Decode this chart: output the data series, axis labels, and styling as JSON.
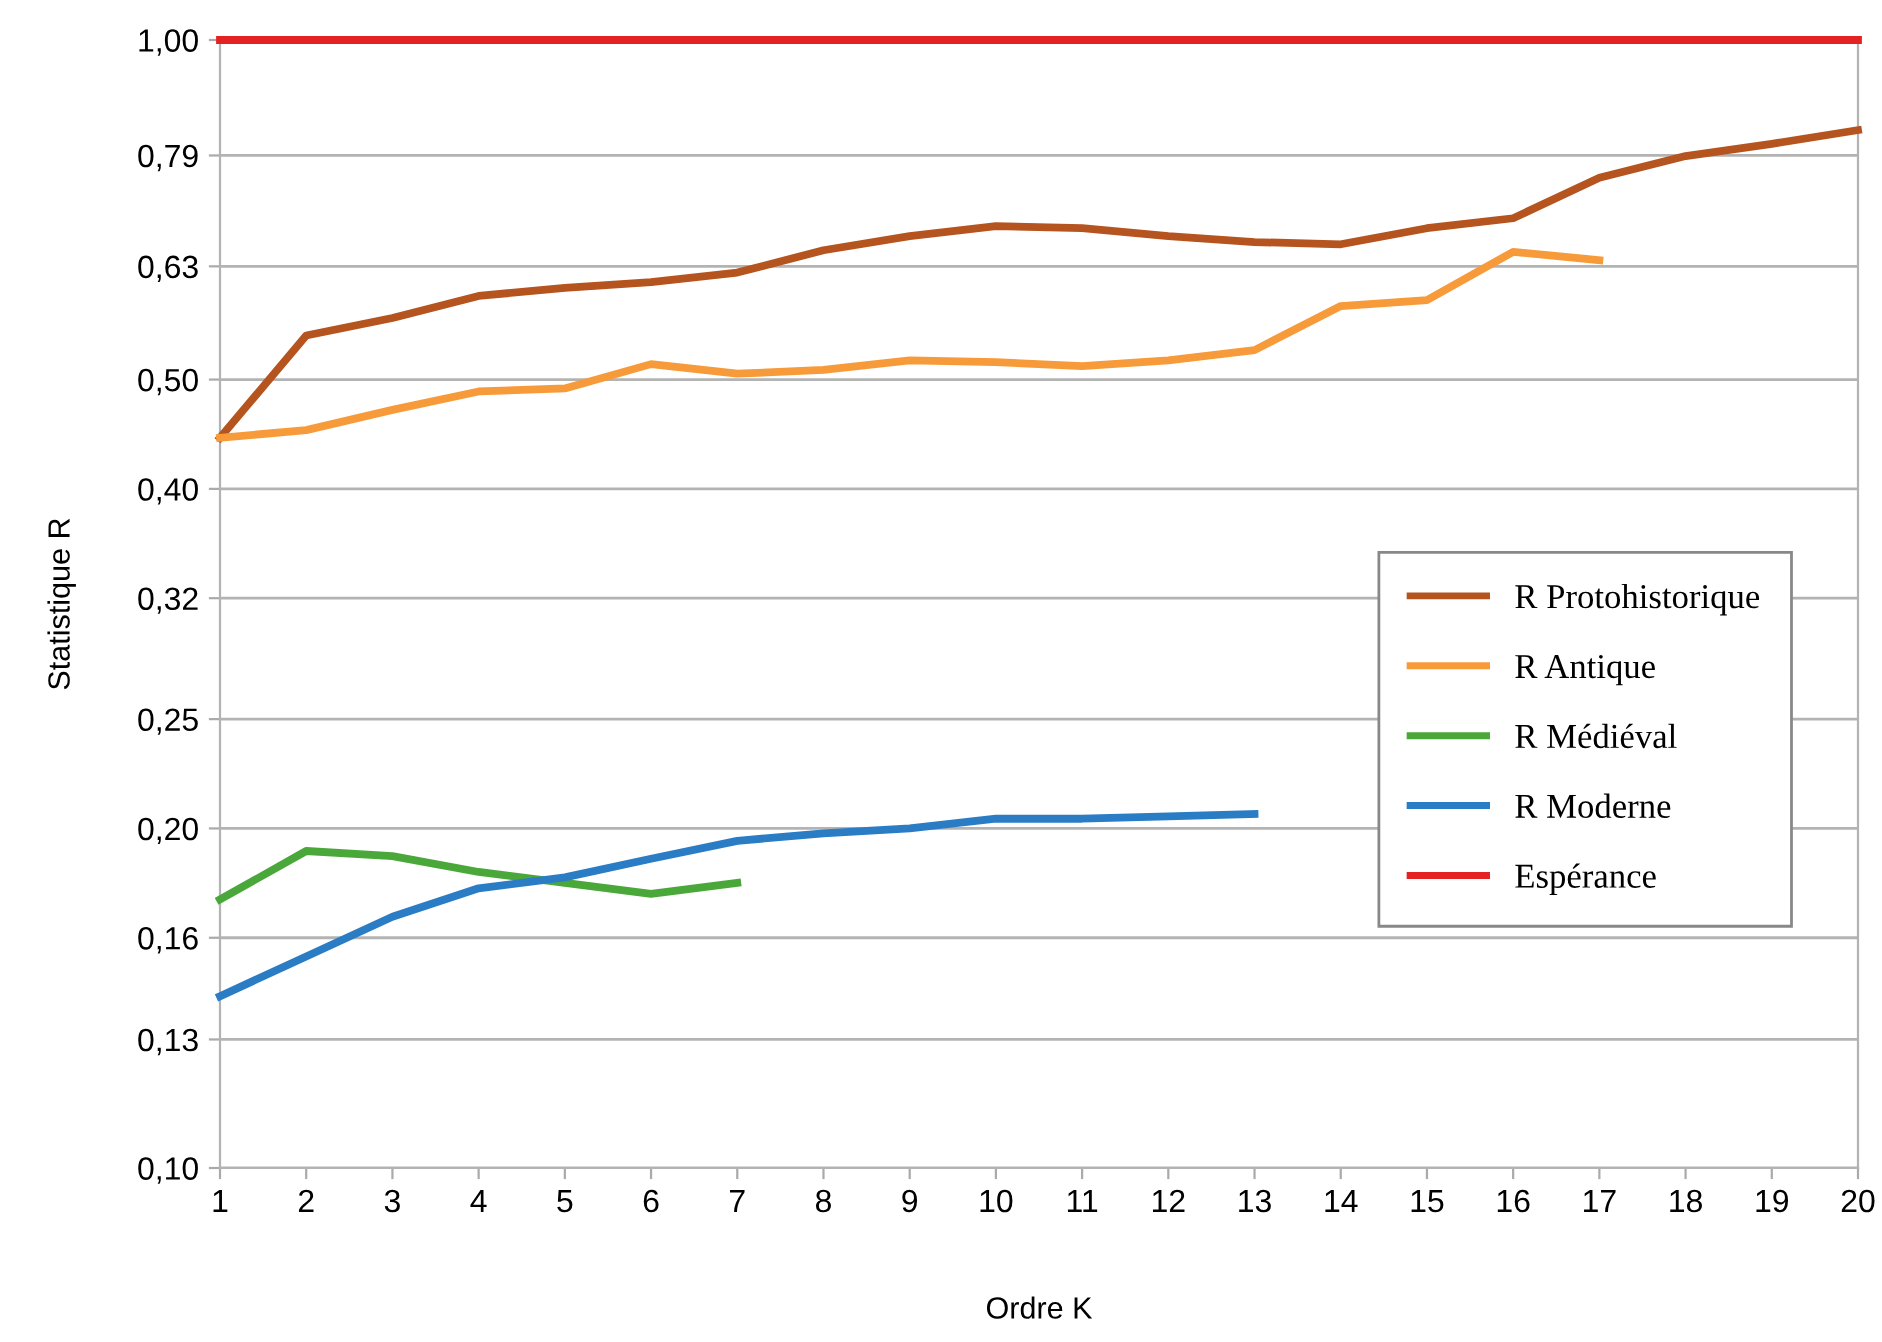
{
  "chart_data": {
    "type": "line",
    "xlabel": "Ordre K",
    "ylabel": "Statistique R",
    "x": [
      1,
      2,
      3,
      4,
      5,
      6,
      7,
      8,
      9,
      10,
      11,
      12,
      13,
      14,
      15,
      16,
      17,
      18,
      19,
      20
    ],
    "series": [
      {
        "name": "R Protohistorique",
        "color": "#b5541e",
        "values": [
          0.444,
          0.547,
          0.567,
          0.593,
          0.603,
          0.61,
          0.622,
          0.651,
          0.67,
          0.684,
          0.681,
          0.67,
          0.662,
          0.659,
          0.681,
          0.695,
          0.755,
          0.789,
          0.809,
          0.832
        ]
      },
      {
        "name": "R Antique",
        "color": "#f79a3a",
        "values": [
          0.444,
          0.451,
          0.47,
          0.488,
          0.491,
          0.516,
          0.506,
          0.51,
          0.52,
          0.518,
          0.514,
          0.52,
          0.531,
          0.581,
          0.588,
          0.649,
          0.638,
          null,
          null,
          null
        ]
      },
      {
        "name": "R Médiéval",
        "color": "#4aa83a",
        "values": [
          0.173,
          0.191,
          0.189,
          0.183,
          0.179,
          0.175,
          0.179,
          null,
          null,
          null,
          null,
          null,
          null,
          null,
          null,
          null,
          null,
          null,
          null,
          null
        ]
      },
      {
        "name": "R Moderne",
        "color": "#2a7cc4",
        "values": [
          0.142,
          0.154,
          0.167,
          0.177,
          0.181,
          0.188,
          0.195,
          0.198,
          0.2,
          0.204,
          0.204,
          0.205,
          0.206,
          null,
          null,
          null,
          null,
          null,
          null,
          null
        ]
      },
      {
        "name": "Espérance",
        "color": "#e52222",
        "values": [
          1,
          1,
          1,
          1,
          1,
          1,
          1,
          1,
          1,
          1,
          1,
          1,
          1,
          1,
          1,
          1,
          1,
          1,
          1,
          1
        ]
      }
    ],
    "log": "y",
    "xlim": [
      1,
      20
    ],
    "xticks": [
      1,
      2,
      3,
      4,
      5,
      6,
      7,
      8,
      9,
      10,
      11,
      12,
      13,
      14,
      15,
      16,
      17,
      18,
      19,
      20
    ],
    "ylim": [
      0.1,
      1.0
    ],
    "yticks": [
      {
        "value": 0.1,
        "label": "0,10"
      },
      {
        "value": 0.13,
        "label": "0,13"
      },
      {
        "value": 0.16,
        "label": "0,16"
      },
      {
        "value": 0.2,
        "label": "0,20"
      },
      {
        "value": 0.25,
        "label": "0,25"
      },
      {
        "value": 0.32,
        "label": "0,32"
      },
      {
        "value": 0.4,
        "label": "0,40"
      },
      {
        "value": 0.5,
        "label": "0,50"
      },
      {
        "value": 0.63,
        "label": "0,63"
      },
      {
        "value": 0.79,
        "label": "0,79"
      },
      {
        "value": 1.0,
        "label": "1,00"
      }
    ],
    "grid": "y",
    "legend": "right",
    "marker": "none",
    "line_style": "solid"
  }
}
